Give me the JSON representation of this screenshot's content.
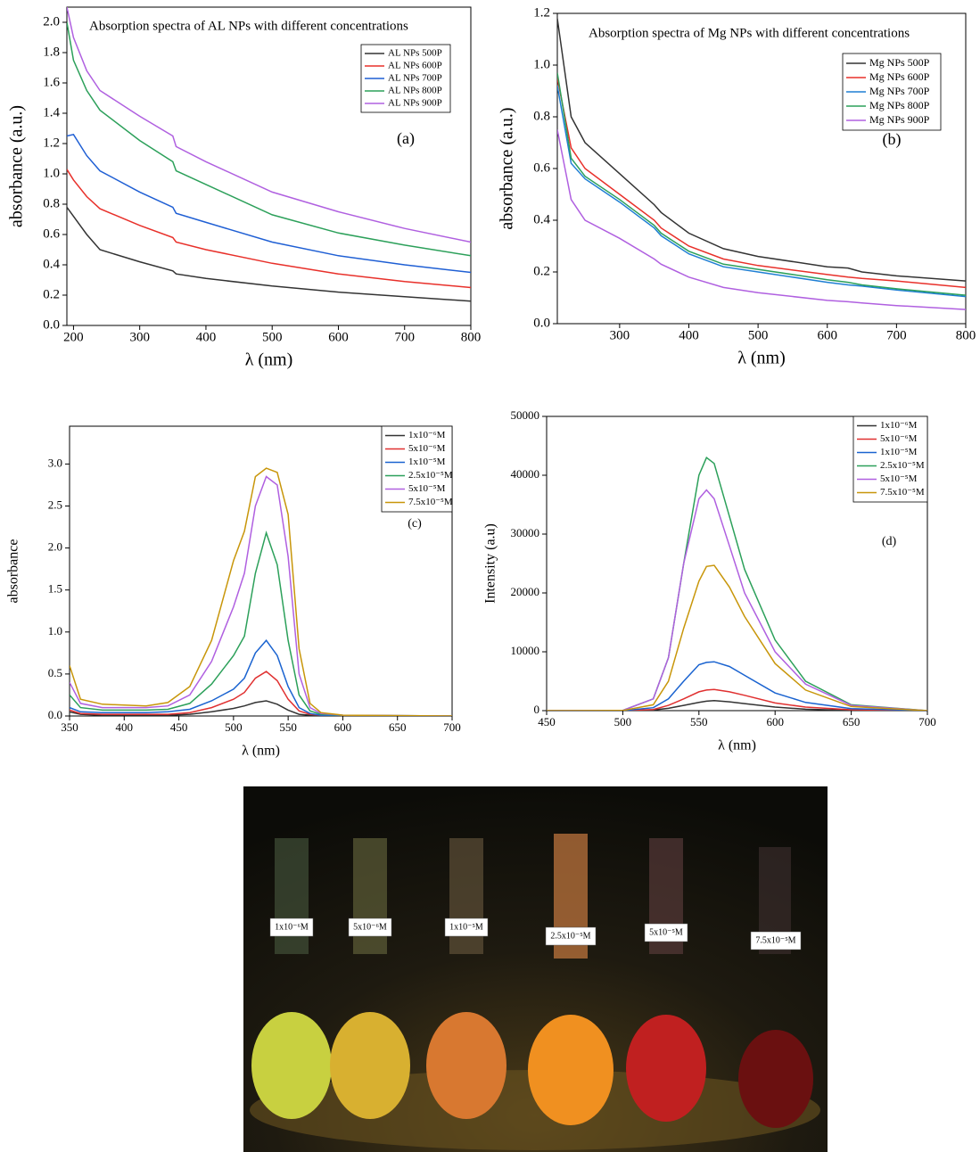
{
  "chart_data": [
    {
      "type": "line",
      "title": "Absorption spectra of AL NPs with different concentrations",
      "annotation": "(a)",
      "xlabel": "λ (nm)",
      "ylabel": "absorbance (a.u.)",
      "xlim": [
        190,
        800
      ],
      "xticks": [
        200,
        300,
        400,
        500,
        600,
        700,
        800
      ],
      "ylim": [
        0,
        2.1
      ],
      "yticks": [
        {
          "value": 0,
          "label": "0.0"
        },
        0.2,
        0.4,
        0.6,
        0.8,
        {
          "value": 1,
          "label": "1.0"
        },
        1.2,
        1.4,
        1.6,
        1.8,
        {
          "value": 2,
          "label": "2.0"
        }
      ],
      "legend": "upper right",
      "x": [
        190,
        200,
        220,
        240,
        300,
        350,
        355,
        400,
        500,
        600,
        700,
        800
      ],
      "series": [
        {
          "name": "AL NPs 500P",
          "color": "#333333",
          "values": [
            0.78,
            0.72,
            0.6,
            0.5,
            0.42,
            0.36,
            0.34,
            0.31,
            0.26,
            0.22,
            0.19,
            0.16
          ]
        },
        {
          "name": "AL NPs 600P",
          "color": "#e8302a",
          "values": [
            1.03,
            0.96,
            0.85,
            0.77,
            0.66,
            0.58,
            0.55,
            0.5,
            0.41,
            0.34,
            0.29,
            0.25
          ]
        },
        {
          "name": "AL NPs 700P",
          "color": "#1f5fd4",
          "values": [
            1.25,
            1.26,
            1.12,
            1.02,
            0.88,
            0.78,
            0.74,
            0.68,
            0.55,
            0.46,
            0.4,
            0.35
          ]
        },
        {
          "name": "AL NPs 800P",
          "color": "#2ca05a",
          "values": [
            2.0,
            1.75,
            1.55,
            1.42,
            1.22,
            1.08,
            1.02,
            0.93,
            0.73,
            0.61,
            0.53,
            0.46
          ]
        },
        {
          "name": "AL NPs 900P",
          "color": "#b060e0",
          "values": [
            2.1,
            1.9,
            1.68,
            1.55,
            1.38,
            1.25,
            1.18,
            1.08,
            0.88,
            0.75,
            0.64,
            0.55
          ]
        }
      ]
    },
    {
      "type": "line",
      "title": "Absorption spectra of Mg NPs with different concentrations",
      "annotation": "(b)",
      "xlabel": "λ (nm)",
      "ylabel": "absorbance (a.u.)",
      "xlim": [
        210,
        800
      ],
      "xticks": [
        300,
        400,
        500,
        600,
        700,
        800
      ],
      "ylim": [
        0,
        1.2
      ],
      "yticks": [
        {
          "value": 0,
          "label": "0.0"
        },
        0.2,
        0.4,
        0.6,
        0.8,
        {
          "value": 1,
          "label": "1.0"
        },
        1.2
      ],
      "legend": "upper right",
      "x": [
        210,
        230,
        250,
        300,
        350,
        360,
        400,
        450,
        500,
        600,
        630,
        650,
        700,
        800
      ],
      "series": [
        {
          "name": "Mg NPs 500P",
          "color": "#333333",
          "values": [
            1.18,
            0.8,
            0.7,
            0.58,
            0.46,
            0.43,
            0.35,
            0.29,
            0.26,
            0.22,
            0.215,
            0.2,
            0.185,
            0.165
          ]
        },
        {
          "name": "Mg NPs 600P",
          "color": "#e8302a",
          "values": [
            0.95,
            0.68,
            0.6,
            0.5,
            0.4,
            0.37,
            0.3,
            0.25,
            0.225,
            0.19,
            0.18,
            0.175,
            0.165,
            0.14
          ]
        },
        {
          "name": "Mg NPs 700P",
          "color": "#1f7fd4",
          "values": [
            0.92,
            0.62,
            0.56,
            0.47,
            0.37,
            0.34,
            0.27,
            0.22,
            0.2,
            0.16,
            0.15,
            0.145,
            0.13,
            0.105
          ]
        },
        {
          "name": "Mg NPs 800P",
          "color": "#2ca05a",
          "values": [
            0.97,
            0.64,
            0.57,
            0.48,
            0.38,
            0.35,
            0.28,
            0.23,
            0.21,
            0.17,
            0.16,
            0.15,
            0.135,
            0.11
          ]
        },
        {
          "name": "Mg NPs 900P",
          "color": "#b060e0",
          "values": [
            0.75,
            0.48,
            0.4,
            0.33,
            0.25,
            0.23,
            0.18,
            0.14,
            0.12,
            0.09,
            0.085,
            0.08,
            0.07,
            0.055
          ]
        }
      ]
    },
    {
      "type": "line",
      "annotation": "(c)",
      "xlabel": "λ (nm)",
      "ylabel": "absorbance",
      "xlim": [
        350,
        700
      ],
      "xticks": [
        350,
        400,
        450,
        500,
        550,
        600,
        650,
        700
      ],
      "ylim": [
        0,
        3.45
      ],
      "yticks": [
        {
          "value": 0,
          "label": "0.0"
        },
        0.5,
        {
          "value": 1,
          "label": "1.0"
        },
        1.5,
        {
          "value": 2,
          "label": "2.0"
        },
        2.5,
        {
          "value": 3,
          "label": "3.0"
        }
      ],
      "legend": "upper right",
      "x": [
        350,
        360,
        380,
        400,
        420,
        440,
        460,
        480,
        500,
        510,
        520,
        530,
        540,
        550,
        560,
        570,
        580,
        600,
        700
      ],
      "series": [
        {
          "name": "1x10⁻⁶M",
          "color": "#333333",
          "values": [
            0.05,
            0.02,
            0.01,
            0.01,
            0.01,
            0.01,
            0.02,
            0.05,
            0.09,
            0.12,
            0.16,
            0.18,
            0.14,
            0.07,
            0.02,
            0.01,
            0.005,
            0,
            0
          ]
        },
        {
          "name": "5x10⁻⁶M",
          "color": "#e03030",
          "values": [
            0.07,
            0.03,
            0.02,
            0.02,
            0.02,
            0.02,
            0.04,
            0.1,
            0.2,
            0.28,
            0.45,
            0.53,
            0.42,
            0.2,
            0.06,
            0.02,
            0.01,
            0.005,
            0
          ]
        },
        {
          "name": "1x10⁻⁵M",
          "color": "#1a63d0",
          "values": [
            0.1,
            0.05,
            0.04,
            0.04,
            0.04,
            0.05,
            0.08,
            0.18,
            0.32,
            0.45,
            0.75,
            0.9,
            0.72,
            0.35,
            0.1,
            0.03,
            0.01,
            0.005,
            0
          ]
        },
        {
          "name": "2.5x10⁻⁵M",
          "color": "#2ca05a",
          "values": [
            0.25,
            0.1,
            0.07,
            0.07,
            0.07,
            0.08,
            0.15,
            0.38,
            0.72,
            0.95,
            1.7,
            2.18,
            1.8,
            0.9,
            0.25,
            0.06,
            0.02,
            0.01,
            0
          ]
        },
        {
          "name": "5x10⁻⁵M",
          "color": "#b060e0",
          "values": [
            0.4,
            0.15,
            0.1,
            0.1,
            0.1,
            0.12,
            0.25,
            0.65,
            1.3,
            1.7,
            2.5,
            2.85,
            2.75,
            1.9,
            0.5,
            0.1,
            0.03,
            0.01,
            0
          ]
        },
        {
          "name": "7.5x10⁻⁵M",
          "color": "#c8960a",
          "values": [
            0.6,
            0.2,
            0.14,
            0.13,
            0.12,
            0.16,
            0.35,
            0.9,
            1.85,
            2.2,
            2.85,
            2.95,
            2.9,
            2.4,
            0.8,
            0.15,
            0.04,
            0.01,
            0
          ]
        }
      ]
    },
    {
      "type": "line",
      "annotation": "(d)",
      "xlabel": "λ (nm)",
      "ylabel": "Intensity (a.u)",
      "xlim": [
        450,
        700
      ],
      "xticks": [
        450,
        500,
        550,
        600,
        650,
        700
      ],
      "ylim": [
        0,
        50000
      ],
      "yticks": [
        0,
        10000,
        20000,
        30000,
        40000,
        50000
      ],
      "legend": "upper right",
      "x": [
        450,
        500,
        520,
        530,
        540,
        550,
        555,
        560,
        570,
        580,
        600,
        620,
        650,
        700
      ],
      "series": [
        {
          "name": "1x10⁻⁶M",
          "color": "#333333",
          "values": [
            0,
            0,
            100,
            400,
            900,
            1400,
            1600,
            1700,
            1500,
            1200,
            600,
            250,
            50,
            0
          ]
        },
        {
          "name": "5x10⁻⁶M",
          "color": "#e03030",
          "values": [
            0,
            0,
            200,
            900,
            2000,
            3200,
            3500,
            3600,
            3200,
            2600,
            1300,
            600,
            150,
            0
          ]
        },
        {
          "name": "1x10⁻⁵M",
          "color": "#1a63d0",
          "values": [
            0,
            0,
            500,
            2000,
            5000,
            7800,
            8200,
            8300,
            7500,
            6000,
            3000,
            1400,
            350,
            0
          ]
        },
        {
          "name": "2.5x10⁻⁵M",
          "color": "#2ca05a",
          "values": [
            0,
            50,
            2000,
            9000,
            25000,
            40000,
            43000,
            42000,
            33000,
            24000,
            12000,
            5000,
            1000,
            0
          ]
        },
        {
          "name": "5x10⁻⁵M",
          "color": "#b060e0",
          "values": [
            0,
            50,
            2000,
            9000,
            25000,
            36000,
            37500,
            36000,
            28000,
            20000,
            10000,
            4500,
            900,
            0
          ]
        },
        {
          "name": "7.5x10⁻⁵M",
          "color": "#c8960a",
          "values": [
            0,
            30,
            1000,
            5000,
            14000,
            22000,
            24500,
            24700,
            21000,
            16000,
            8000,
            3500,
            700,
            0
          ]
        }
      ]
    }
  ],
  "photo": {
    "labels": [
      "1x10⁻⁶M",
      "5x10⁻⁶M",
      "1x10⁻⁵M",
      "2.5x10⁻⁵M",
      "5x10⁻⁵M",
      "7.5x10⁻⁵M"
    ]
  }
}
